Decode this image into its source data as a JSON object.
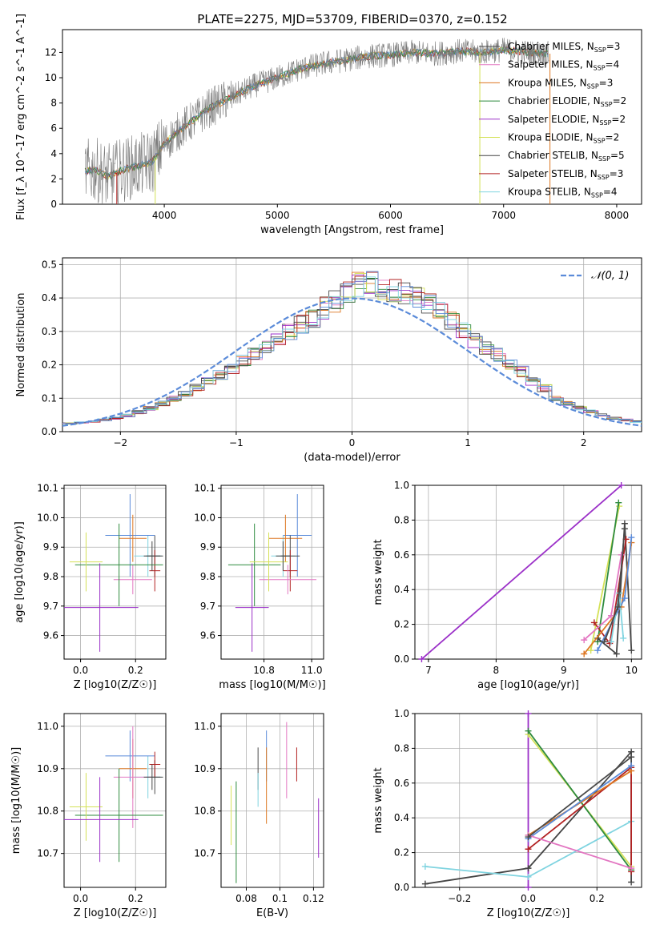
{
  "figure": {
    "title": "PLATE=2275, MJD=53709, FIBERID=0370, z=0.152"
  },
  "colors": {
    "Chabrier MILES": "#4a4a4a",
    "Salpeter MILES": "#e377c2",
    "Kroupa MILES": "#dd7722",
    "Chabrier ELODIE": "#2e8b3e",
    "Salpeter ELODIE": "#9b30c8",
    "Kroupa ELODIE": "#d4e157",
    "Chabrier STELIB": "#454545",
    "Salpeter STELIB": "#b22222",
    "Kroupa STELIB": "#80d4e0",
    "extra_blue": "#5b8bd9",
    "normal_curve": "#5b8bd9"
  },
  "chart_data": [
    {
      "type": "line",
      "panel": "spectrum",
      "xlabel": "wavelength [Angstrom, rest frame]",
      "ylabel": "Flux [f_λ 10^-17 erg cm^-2 s^-1 A^-1]",
      "xlim": [
        3100,
        8220
      ],
      "ylim": [
        0,
        13.8
      ],
      "xticks": [
        4000,
        5000,
        6000,
        7000,
        8000
      ],
      "yticks": [
        0,
        2,
        4,
        6,
        8,
        10,
        12
      ],
      "data_envelope": {
        "x": [
          3300,
          3400,
          3500,
          3600,
          3700,
          3800,
          3900,
          4000,
          4100,
          4200,
          4300,
          4400,
          4600,
          4800,
          5000,
          5200,
          5400,
          5600,
          5800,
          6000,
          6200,
          6400,
          6600,
          6800,
          7000,
          7200,
          7400
        ],
        "y": [
          2.6,
          2.7,
          2.2,
          2.6,
          2.9,
          3.1,
          3.4,
          4.8,
          5.6,
          6.3,
          6.9,
          7.6,
          8.5,
          9.4,
          10.0,
          10.7,
          11.1,
          11.4,
          11.7,
          11.8,
          12.0,
          11.9,
          12.1,
          12.0,
          12.2,
          12.0,
          11.9
        ]
      },
      "legend_position": "top-right",
      "series": [
        {
          "name": "Chabrier MILES, N_SSP=3"
        },
        {
          "name": "Salpeter MILES, N_SSP=4"
        },
        {
          "name": "Kroupa MILES, N_SSP=3"
        },
        {
          "name": "Chabrier ELODIE, N_SSP=2"
        },
        {
          "name": "Salpeter ELODIE, N_SSP=2"
        },
        {
          "name": "Kroupa ELODIE, N_SSP=2"
        },
        {
          "name": "Chabrier STELIB, N_SSP=5"
        },
        {
          "name": "Salpeter STELIB, N_SSP=3"
        },
        {
          "name": "Kroupa STELIB, N_SSP=4"
        }
      ]
    },
    {
      "type": "bar",
      "panel": "residuals",
      "xlabel": "(data-model)/error",
      "ylabel": "Normed distribution",
      "xlim": [
        -2.5,
        2.5
      ],
      "ylim": [
        0,
        0.52
      ],
      "xticks": [
        -2,
        -1,
        0,
        1,
        2
      ],
      "yticks": [
        0.0,
        0.1,
        0.2,
        0.3,
        0.4,
        0.5
      ],
      "bin_width": 0.1,
      "histogram_envelope": [
        0.025,
        0.028,
        0.03,
        0.035,
        0.04,
        0.048,
        0.058,
        0.07,
        0.085,
        0.1,
        0.115,
        0.13,
        0.15,
        0.17,
        0.19,
        0.21,
        0.23,
        0.25,
        0.27,
        0.3,
        0.32,
        0.34,
        0.37,
        0.39,
        0.42,
        0.44,
        0.45,
        0.43,
        0.42,
        0.41,
        0.4,
        0.38,
        0.36,
        0.33,
        0.3,
        0.27,
        0.25,
        0.23,
        0.2,
        0.18,
        0.15,
        0.13,
        0.1,
        0.085,
        0.07,
        0.06,
        0.05,
        0.04,
        0.035,
        0.03
      ],
      "curve": {
        "name": "N(0,1)",
        "label": "𝒩(0, 1)",
        "style": "dashed"
      },
      "legend_position": "top-right"
    },
    {
      "type": "scatter",
      "panel": "age_vs_Z",
      "xlabel": "Z [log10(Z/Z☉)]",
      "ylabel": "age [log10(age/yr)]",
      "xlim": [
        -0.06,
        0.31
      ],
      "ylim": [
        9.52,
        10.11
      ],
      "xticks": [
        0.0,
        0.2
      ],
      "yticks": [
        9.6,
        9.7,
        9.8,
        9.9,
        10.0,
        10.1
      ],
      "points": [
        {
          "model": "Kroupa STELIB",
          "x": 0.245,
          "xerr": 0.05,
          "y": 9.87,
          "yerr": 0.07
        },
        {
          "model": "extra_blue",
          "x": 0.18,
          "xerr": 0.09,
          "y": 9.94,
          "yerr": 0.14
        },
        {
          "model": "Kroupa MILES",
          "x": 0.19,
          "xerr": 0.05,
          "y": 9.93,
          "yerr": 0.08
        },
        {
          "model": "Chabrier MILES",
          "x": 0.27,
          "xerr": 0.03,
          "y": 9.87,
          "yerr": 0.07
        },
        {
          "model": "Salpeter STELIB",
          "x": 0.27,
          "xerr": 0.02,
          "y": 9.82,
          "yerr": 0.07
        },
        {
          "model": "Salpeter MILES",
          "x": 0.19,
          "xerr": 0.07,
          "y": 9.79,
          "yerr": 0.05
        },
        {
          "model": "Chabrier ELODIE",
          "x": 0.14,
          "xerr": 0.16,
          "y": 9.84,
          "yerr": 0.14
        },
        {
          "model": "Kroupa ELODIE",
          "x": 0.02,
          "xerr": 0.06,
          "y": 9.85,
          "yerr": 0.1
        },
        {
          "model": "Salpeter ELODIE",
          "x": 0.07,
          "xerr": 0.14,
          "y": 9.695,
          "yerr": 0.15
        },
        {
          "model": "Chabrier STELIB",
          "x": 0.26,
          "xerr": 0.03,
          "y": 9.87,
          "yerr": 0.05
        }
      ]
    },
    {
      "type": "scatter",
      "panel": "age_vs_mass",
      "xlabel": "mass [log10(M/M☉)]",
      "ylabel": "",
      "xlim": [
        10.62,
        11.05
      ],
      "ylim": [
        9.52,
        10.11
      ],
      "xticks": [
        10.8,
        11.0
      ],
      "yticks": [
        9.6,
        9.7,
        9.8,
        9.9,
        10.0,
        10.1
      ],
      "points": [
        {
          "model": "Kroupa STELIB",
          "x": 10.88,
          "xerr": 0.05,
          "y": 9.87,
          "yerr": 0.07
        },
        {
          "model": "extra_blue",
          "x": 10.94,
          "xerr": 0.06,
          "y": 9.94,
          "yerr": 0.14
        },
        {
          "model": "Kroupa MILES",
          "x": 10.89,
          "xerr": 0.07,
          "y": 9.93,
          "yerr": 0.08
        },
        {
          "model": "Chabrier MILES",
          "x": 10.91,
          "xerr": 0.04,
          "y": 9.87,
          "yerr": 0.07
        },
        {
          "model": "Salpeter STELIB",
          "x": 10.91,
          "xerr": 0.03,
          "y": 9.82,
          "yerr": 0.07
        },
        {
          "model": "Salpeter MILES",
          "x": 10.9,
          "xerr": 0.12,
          "y": 9.79,
          "yerr": 0.05
        },
        {
          "model": "Chabrier ELODIE",
          "x": 10.76,
          "xerr": 0.11,
          "y": 9.84,
          "yerr": 0.14
        },
        {
          "model": "Kroupa ELODIE",
          "x": 10.82,
          "xerr": 0.08,
          "y": 9.85,
          "yerr": 0.1
        },
        {
          "model": "Salpeter ELODIE",
          "x": 10.75,
          "xerr": 0.07,
          "y": 9.695,
          "yerr": 0.15
        },
        {
          "model": "Chabrier STELIB",
          "x": 10.88,
          "xerr": 0.03,
          "y": 9.87,
          "yerr": 0.05
        }
      ]
    },
    {
      "type": "line",
      "panel": "weight_vs_age",
      "xlabel": "age [log10(age/yr)]",
      "ylabel": "mass weight",
      "xlim": [
        6.8,
        10.15
      ],
      "ylim": [
        0.0,
        1.0
      ],
      "xticks": [
        7,
        8,
        9,
        10
      ],
      "yticks": [
        0.0,
        0.2,
        0.4,
        0.6,
        0.8,
        1.0
      ],
      "series": [
        {
          "model": "Salpeter ELODIE",
          "points": [
            [
              6.9,
              0.0
            ],
            [
              9.85,
              1.0
            ]
          ]
        },
        {
          "model": "Kroupa ELODIE",
          "points": [
            [
              9.4,
              0.05
            ],
            [
              9.82,
              0.88
            ]
          ]
        },
        {
          "model": "Chabrier ELODIE",
          "points": [
            [
              9.5,
              0.1
            ],
            [
              9.81,
              0.9
            ]
          ]
        },
        {
          "model": "Chabrier STELIB",
          "points": [
            [
              9.5,
              0.12
            ],
            [
              9.78,
              0.03
            ],
            [
              9.9,
              0.78
            ],
            [
              10.0,
              0.05
            ]
          ]
        },
        {
          "model": "Salpeter STELIB",
          "points": [
            [
              9.45,
              0.21
            ],
            [
              9.68,
              0.09
            ],
            [
              9.92,
              0.69
            ]
          ]
        },
        {
          "model": "Kroupa MILES",
          "points": [
            [
              9.3,
              0.03
            ],
            [
              9.85,
              0.3
            ],
            [
              10.0,
              0.67
            ]
          ]
        },
        {
          "model": "Salpeter MILES",
          "points": [
            [
              9.3,
              0.11
            ],
            [
              9.7,
              0.25
            ],
            [
              9.85,
              0.6
            ]
          ]
        },
        {
          "model": "extra_blue",
          "points": [
            [
              9.5,
              0.05
            ],
            [
              9.9,
              0.35
            ],
            [
              10.0,
              0.7
            ]
          ]
        },
        {
          "model": "Kroupa STELIB",
          "points": [
            [
              9.7,
              0.1
            ],
            [
              9.82,
              0.38
            ],
            [
              9.88,
              0.12
            ]
          ]
        },
        {
          "model": "Chabrier MILES",
          "points": [
            [
              9.6,
              0.1
            ],
            [
              9.8,
              0.3
            ],
            [
              9.9,
              0.75
            ]
          ]
        }
      ]
    },
    {
      "type": "scatter",
      "panel": "mass_vs_Z",
      "xlabel": "Z [log10(Z/Z☉)]",
      "ylabel": "mass [log10(M/M☉)]",
      "xlim": [
        -0.06,
        0.31
      ],
      "ylim": [
        10.62,
        11.03
      ],
      "xticks": [
        0.0,
        0.2
      ],
      "yticks": [
        10.7,
        10.8,
        10.9,
        11.0
      ],
      "points": [
        {
          "model": "Kroupa STELIB",
          "x": 0.245,
          "xerr": 0.05,
          "y": 10.88,
          "yerr": 0.05
        },
        {
          "model": "extra_blue",
          "x": 0.18,
          "xerr": 0.09,
          "y": 10.93,
          "yerr": 0.06
        },
        {
          "model": "Kroupa MILES",
          "x": 0.19,
          "xerr": 0.05,
          "y": 10.9,
          "yerr": 0.07
        },
        {
          "model": "Chabrier MILES",
          "x": 0.27,
          "xerr": 0.03,
          "y": 10.88,
          "yerr": 0.04
        },
        {
          "model": "Salpeter STELIB",
          "x": 0.27,
          "xerr": 0.02,
          "y": 10.91,
          "yerr": 0.03
        },
        {
          "model": "Salpeter MILES",
          "x": 0.19,
          "xerr": 0.07,
          "y": 10.88,
          "yerr": 0.12
        },
        {
          "model": "Chabrier ELODIE",
          "x": 0.14,
          "xerr": 0.16,
          "y": 10.79,
          "yerr": 0.11
        },
        {
          "model": "Kroupa ELODIE",
          "x": 0.02,
          "xerr": 0.06,
          "y": 10.81,
          "yerr": 0.08
        },
        {
          "model": "Salpeter ELODIE",
          "x": 0.07,
          "xerr": 0.14,
          "y": 10.78,
          "yerr": 0.1
        },
        {
          "model": "Chabrier STELIB",
          "x": 0.26,
          "xerr": 0.03,
          "y": 10.88,
          "yerr": 0.03
        }
      ]
    },
    {
      "type": "scatter",
      "panel": "mass_vs_EBV",
      "xlabel": "E(B-V)",
      "ylabel": "",
      "xlim": [
        0.065,
        0.126
      ],
      "ylim": [
        10.62,
        11.03
      ],
      "xticks": [
        0.08,
        0.1,
        0.12
      ],
      "yticks": [
        10.7,
        10.8,
        10.9,
        11.0
      ],
      "points": [
        {
          "model": "Kroupa ELODIE",
          "x": 0.071,
          "y": 10.79,
          "yerr": 0.07
        },
        {
          "model": "Chabrier ELODIE",
          "x": 0.074,
          "y": 10.75,
          "yerr": 0.12
        },
        {
          "model": "Chabrier MILES",
          "x": 0.087,
          "y": 10.9,
          "yerr": 0.05
        },
        {
          "model": "Kroupa STELIB",
          "x": 0.087,
          "y": 10.85,
          "yerr": 0.04
        },
        {
          "model": "extra_blue",
          "x": 0.092,
          "y": 10.93,
          "yerr": 0.06
        },
        {
          "model": "Kroupa MILES",
          "x": 0.092,
          "y": 10.86,
          "yerr": 0.09
        },
        {
          "model": "Salpeter MILES",
          "x": 0.104,
          "y": 10.92,
          "yerr": 0.09
        },
        {
          "model": "Salpeter STELIB",
          "x": 0.11,
          "y": 10.91,
          "yerr": 0.04
        },
        {
          "model": "Salpeter ELODIE",
          "x": 0.123,
          "y": 10.76,
          "yerr": 0.07
        }
      ]
    },
    {
      "type": "line",
      "panel": "weight_vs_Z",
      "xlabel": "Z [log10(Z/Z☉)]",
      "ylabel": "mass weight",
      "xlim": [
        -0.33,
        0.33
      ],
      "ylim": [
        0.0,
        1.0
      ],
      "xticks": [
        -0.2,
        0.0,
        0.2
      ],
      "yticks": [
        0.0,
        0.2,
        0.4,
        0.6,
        0.8,
        1.0
      ],
      "series": [
        {
          "model": "Salpeter ELODIE",
          "points": [
            [
              0.0,
              0.0
            ],
            [
              0.0,
              1.0
            ]
          ]
        },
        {
          "model": "Chabrier STELIB",
          "points": [
            [
              -0.3,
              0.02
            ],
            [
              0.0,
              0.11
            ],
            [
              0.3,
              0.78
            ],
            [
              0.3,
              0.03
            ]
          ]
        },
        {
          "model": "Kroupa STELIB",
          "points": [
            [
              -0.3,
              0.12
            ],
            [
              0.0,
              0.06
            ],
            [
              0.3,
              0.38
            ]
          ]
        },
        {
          "model": "Kroupa ELODIE",
          "points": [
            [
              0.0,
              0.88
            ],
            [
              0.3,
              0.12
            ]
          ]
        },
        {
          "model": "Chabrier ELODIE",
          "points": [
            [
              0.0,
              0.9
            ],
            [
              0.3,
              0.1
            ]
          ]
        },
        {
          "model": "Salpeter STELIB",
          "points": [
            [
              0.0,
              0.22
            ],
            [
              0.3,
              0.69
            ],
            [
              0.3,
              0.09
            ]
          ]
        },
        {
          "model": "Kroupa MILES",
          "points": [
            [
              0.0,
              0.3
            ],
            [
              0.3,
              0.67
            ]
          ]
        },
        {
          "model": "extra_blue",
          "points": [
            [
              0.0,
              0.28
            ],
            [
              0.3,
              0.7
            ]
          ]
        },
        {
          "model": "Salpeter MILES",
          "points": [
            [
              0.0,
              0.3
            ],
            [
              0.3,
              0.11
            ]
          ]
        },
        {
          "model": "Chabrier MILES",
          "points": [
            [
              0.0,
              0.29
            ],
            [
              0.3,
              0.75
            ]
          ]
        }
      ]
    }
  ]
}
